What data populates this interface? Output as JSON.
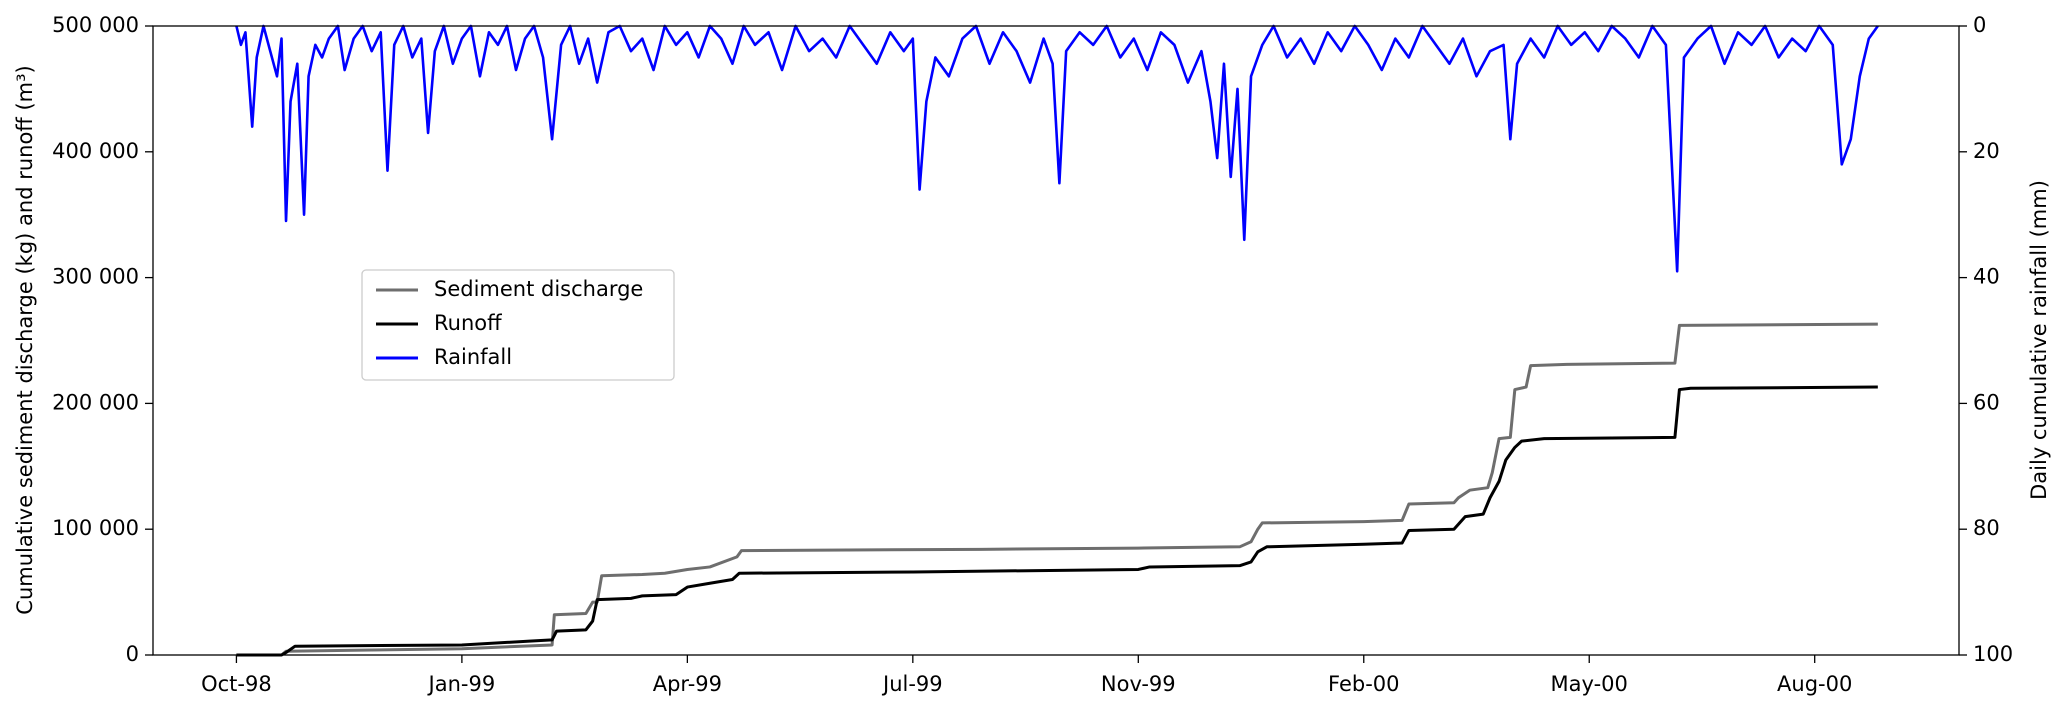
{
  "chart_data": {
    "type": "line",
    "ylabel": "Cumulative sediment discharge (kg) and runoff (m³)",
    "y2label": "Daily cumulative rainfall (mm)",
    "xlim": [
      -37,
      764
    ],
    "xticks": [
      {
        "value": 0,
        "label": "Oct-98"
      },
      {
        "value": 100,
        "label": "Jan-99"
      },
      {
        "value": 200,
        "label": "Apr-99"
      },
      {
        "value": 300,
        "label": "Jul-99"
      },
      {
        "value": 400,
        "label": "Nov-99"
      },
      {
        "value": 500,
        "label": "Feb-00"
      },
      {
        "value": 600,
        "label": "May-00"
      },
      {
        "value": 700,
        "label": "Aug-00"
      }
    ],
    "ylim": [
      0,
      500000
    ],
    "yticks": [
      0,
      {
        "value": 100000,
        "label": "100 000"
      },
      {
        "value": 200000,
        "label": "200 000"
      },
      {
        "value": 300000,
        "label": "300 000"
      },
      {
        "value": 400000,
        "label": "400 000"
      },
      {
        "value": 500000,
        "label": "500 000"
      }
    ],
    "y2lim": [
      100,
      0
    ],
    "y2ticks": [
      0,
      20,
      40,
      60,
      80,
      100
    ],
    "legend": "center-left",
    "series": [
      {
        "name": "Sediment discharge",
        "color": "#6e6e6e",
        "x": [
          0,
          20,
          22,
          60,
          100,
          140,
          141,
          155,
          158,
          160,
          162,
          180,
          190,
          200,
          210,
          222,
          224,
          330,
          400,
          445,
          450,
          453,
          455,
          500,
          517,
          520,
          540,
          542,
          547,
          555,
          557,
          560,
          565,
          567,
          572,
          574,
          590,
          638,
          640,
          728
        ],
        "values": [
          0,
          0,
          3000,
          4000,
          5000,
          8000,
          32000,
          33000,
          42000,
          42000,
          63000,
          64000,
          65000,
          68000,
          70000,
          78000,
          83000,
          84000,
          85000,
          86000,
          90000,
          100000,
          105000,
          106000,
          107000,
          120000,
          121000,
          125000,
          131000,
          133000,
          145000,
          172000,
          173000,
          211000,
          213000,
          230000,
          231000,
          232000,
          262000,
          263000
        ]
      },
      {
        "name": "Runoff",
        "color": "#000000",
        "x": [
          0,
          20,
          22,
          26,
          100,
          130,
          140,
          142,
          155,
          158,
          160,
          175,
          180,
          195,
          200,
          210,
          220,
          223,
          300,
          400,
          405,
          445,
          450,
          453,
          457,
          500,
          517,
          520,
          540,
          545,
          553,
          556,
          560,
          563,
          567,
          570,
          580,
          638,
          640,
          645,
          728
        ],
        "values": [
          0,
          0,
          2000,
          7000,
          8000,
          11000,
          12000,
          19000,
          20000,
          27000,
          44000,
          45000,
          47000,
          48000,
          54000,
          57000,
          60000,
          65000,
          66000,
          68000,
          70000,
          71000,
          74000,
          82000,
          86000,
          88000,
          89000,
          99000,
          100000,
          110000,
          112000,
          125000,
          138000,
          155000,
          165000,
          170000,
          172000,
          173000,
          211000,
          212000,
          213000
        ]
      },
      {
        "name": "Rainfall",
        "color": "#0000ff",
        "axis": "y2",
        "x": [
          0,
          2,
          4,
          7,
          9,
          12,
          15,
          18,
          20,
          22,
          24,
          27,
          30,
          32,
          35,
          38,
          41,
          45,
          48,
          52,
          56,
          60,
          64,
          67,
          70,
          74,
          78,
          82,
          85,
          88,
          92,
          96,
          100,
          104,
          108,
          112,
          116,
          120,
          124,
          128,
          132,
          136,
          140,
          144,
          148,
          152,
          156,
          160,
          165,
          170,
          175,
          180,
          185,
          190,
          195,
          200,
          205,
          210,
          215,
          220,
          225,
          230,
          236,
          242,
          248,
          254,
          260,
          266,
          272,
          278,
          284,
          290,
          296,
          300,
          303,
          306,
          310,
          316,
          322,
          328,
          334,
          340,
          346,
          352,
          358,
          362,
          365,
          368,
          374,
          380,
          386,
          392,
          398,
          404,
          410,
          416,
          422,
          428,
          432,
          435,
          438,
          441,
          444,
          447,
          450,
          455,
          460,
          466,
          472,
          478,
          484,
          490,
          496,
          502,
          508,
          514,
          520,
          526,
          532,
          538,
          544,
          550,
          556,
          562,
          565,
          568,
          574,
          580,
          586,
          592,
          598,
          604,
          610,
          616,
          622,
          628,
          634,
          639,
          642,
          648,
          654,
          660,
          666,
          672,
          678,
          684,
          690,
          696,
          702,
          708,
          712,
          716,
          720,
          724,
          728
        ],
        "values": [
          0,
          3,
          1,
          16,
          5,
          0,
          4,
          8,
          2,
          31,
          12,
          6,
          30,
          8,
          3,
          5,
          2,
          0,
          7,
          2,
          0,
          4,
          1,
          23,
          3,
          0,
          5,
          2,
          17,
          4,
          0,
          6,
          2,
          0,
          8,
          1,
          3,
          0,
          7,
          2,
          0,
          5,
          18,
          3,
          0,
          6,
          2,
          9,
          1,
          0,
          4,
          2,
          7,
          0,
          3,
          1,
          5,
          0,
          2,
          6,
          0,
          3,
          1,
          7,
          0,
          4,
          2,
          5,
          0,
          3,
          6,
          1,
          4,
          2,
          26,
          12,
          5,
          8,
          2,
          0,
          6,
          1,
          4,
          9,
          2,
          6,
          25,
          4,
          1,
          3,
          0,
          5,
          2,
          7,
          1,
          3,
          9,
          4,
          12,
          21,
          6,
          24,
          10,
          34,
          8,
          3,
          0,
          5,
          2,
          6,
          1,
          4,
          0,
          3,
          7,
          2,
          5,
          0,
          3,
          6,
          2,
          8,
          4,
          3,
          18,
          6,
          2,
          5,
          0,
          3,
          1,
          4,
          0,
          2,
          5,
          0,
          3,
          39,
          5,
          2,
          0,
          6,
          1,
          3,
          0,
          5,
          2,
          4,
          0,
          3,
          22,
          18,
          8,
          2,
          0
        ]
      }
    ]
  }
}
